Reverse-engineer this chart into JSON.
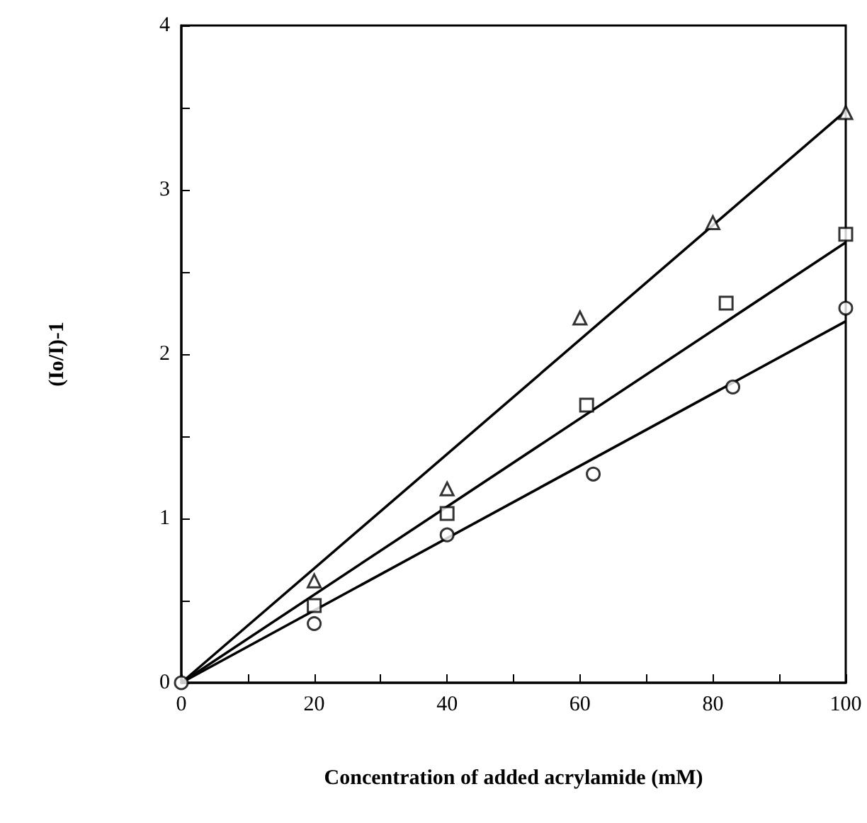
{
  "chart_data": {
    "type": "scatter",
    "xlabel": "Concentration of added acrylamide (mM)",
    "ylabel": "(Io/I)-1",
    "xlim": [
      0,
      100
    ],
    "ylim": [
      0,
      4
    ],
    "xticks": [
      0,
      {
        "value": 10,
        "label": null
      },
      20,
      {
        "value": 30,
        "label": null
      },
      40,
      {
        "value": 50,
        "label": null
      },
      60,
      {
        "value": 70,
        "label": null
      },
      80,
      {
        "value": 90,
        "label": null
      },
      100
    ],
    "yticks": [
      0,
      {
        "value": 0.5,
        "label": null
      },
      1,
      {
        "value": 1.5,
        "label": null
      },
      2,
      {
        "value": 2.5,
        "label": null
      },
      3,
      {
        "value": 3.5,
        "label": null
      },
      4
    ],
    "grid": false,
    "series": [
      {
        "marker": "triangle",
        "color": "#000000",
        "x": [
          20,
          40,
          60,
          80,
          100
        ],
        "values": [
          0.62,
          1.18,
          2.22,
          2.8,
          3.47
        ]
      },
      {
        "marker": "square",
        "color": "#000000",
        "x": [
          20,
          40,
          61,
          82,
          100
        ],
        "values": [
          0.47,
          1.03,
          1.69,
          2.31,
          2.73
        ]
      },
      {
        "marker": "circle",
        "color": "#000000",
        "x": [
          0,
          20,
          40,
          62,
          83,
          100
        ],
        "values": [
          0,
          0.36,
          0.9,
          1.27,
          1.8,
          2.28
        ]
      },
      {
        "type": "line",
        "marker": "none",
        "color": "#000000",
        "x": [
          0,
          100
        ],
        "values": [
          0,
          3.48
        ]
      },
      {
        "type": "line",
        "marker": "none",
        "color": "#000000",
        "x": [
          0,
          100
        ],
        "values": [
          0,
          2.68
        ]
      },
      {
        "type": "line",
        "marker": "none",
        "color": "#000000",
        "x": [
          0,
          100
        ],
        "values": [
          0,
          2.2
        ]
      }
    ]
  }
}
